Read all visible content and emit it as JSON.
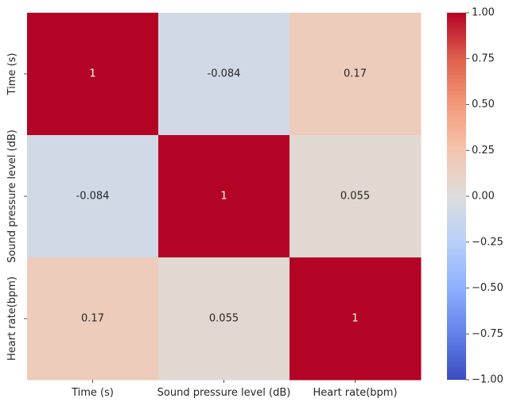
{
  "chart_data": {
    "type": "heatmap",
    "title": "",
    "xlabel": "",
    "ylabel": "",
    "x_categories": [
      "Time (s)",
      "Sound pressure level (dB)",
      "Heart rate(bpm)"
    ],
    "y_categories": [
      "Time (s)",
      "Sound pressure level (dB)",
      "Heart rate(bpm)"
    ],
    "matrix": [
      [
        1,
        -0.084,
        0.17
      ],
      [
        -0.084,
        1,
        0.055
      ],
      [
        0.17,
        0.055,
        1
      ]
    ],
    "cell_labels": [
      [
        "1",
        "-0.084",
        "0.17"
      ],
      [
        "-0.084",
        "1",
        "0.055"
      ],
      [
        "0.17",
        "0.055",
        "1"
      ]
    ],
    "colormap": "coolwarm",
    "vmin": -1,
    "vmax": 1,
    "colorbar_ticks": [
      1.0,
      0.75,
      0.5,
      0.25,
      0.0,
      -0.25,
      -0.5,
      -0.75,
      -1.0
    ],
    "colorbar_tick_labels": [
      "1.00",
      "0.75",
      "0.50",
      "0.25",
      "0.00",
      "−0.25",
      "−0.50",
      "−0.75",
      "−1.00"
    ],
    "colorbar_placement": "right",
    "grid": false
  }
}
